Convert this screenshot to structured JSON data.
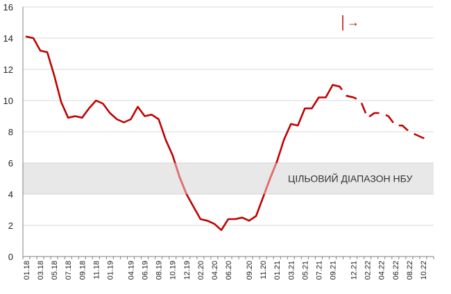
{
  "chart_data": {
    "type": "line",
    "title": "",
    "xlabel": "",
    "ylabel": "",
    "ylim": [
      0,
      16
    ],
    "yticks": [
      0,
      2,
      4,
      6,
      8,
      10,
      12,
      14,
      16
    ],
    "grid": "horizontal",
    "x_tick_labels": [
      "01.18",
      "03.18",
      "05.18",
      "07.18",
      "09.18",
      "11.18",
      "01.19",
      "04.19",
      "06.19",
      "08.19",
      "10.19",
      "12.19",
      "02.20",
      "04.20",
      "06.20",
      "09.20",
      "11.20",
      "01.21",
      "03.21",
      "05.21",
      "07.21",
      "09.21",
      "12.21",
      "02.22",
      "04.22",
      "06.22",
      "08.22",
      "10.22"
    ],
    "target_band": {
      "label": "ЦІЛЬОВИЙ ДІАПАЗОН НБУ",
      "from": 4,
      "to": 6,
      "color": "#e8e8e8"
    },
    "colors": {
      "line": "#c00000",
      "band_line": "#e07070",
      "axis": "#7f7f7f",
      "grid": "#d9d9d9"
    },
    "forecast_marker": {
      "symbol": "→"
    },
    "series_actual": {
      "x": [
        "01.18",
        "02.18",
        "03.18",
        "04.18",
        "05.18",
        "06.18",
        "07.18",
        "08.18",
        "09.18",
        "10.18",
        "11.18",
        "12.18",
        "01.19",
        "02.19",
        "03.19",
        "04.19",
        "05.19",
        "06.19",
        "07.19",
        "08.19",
        "09.19",
        "10.19",
        "11.19",
        "12.19",
        "01.20",
        "02.20",
        "03.20",
        "04.20",
        "05.20",
        "06.20",
        "07.20",
        "08.20",
        "09.20",
        "10.20",
        "11.20",
        "12.20",
        "01.21",
        "02.21",
        "03.21",
        "04.21",
        "05.21",
        "06.21",
        "07.21",
        "08.21",
        "09.21"
      ],
      "values": [
        14.1,
        14.0,
        13.2,
        13.1,
        11.6,
        9.9,
        8.9,
        9.0,
        8.9,
        9.5,
        10.0,
        9.8,
        9.2,
        8.8,
        8.6,
        8.8,
        9.6,
        9.0,
        9.1,
        8.8,
        7.5,
        6.5,
        5.1,
        4.0,
        3.2,
        2.4,
        2.3,
        2.1,
        1.7,
        2.4,
        2.4,
        2.5,
        2.3,
        2.6,
        3.8,
        5.0,
        6.1,
        7.5,
        8.5,
        8.4,
        9.5,
        9.5,
        10.2,
        10.2,
        11.0
      ]
    },
    "series_forecast": {
      "x": [
        "09.21",
        "10.21",
        "11.21",
        "12.21",
        "01.22",
        "02.22",
        "03.22",
        "04.22",
        "05.22",
        "06.22",
        "07.22",
        "08.22",
        "09.22",
        "10.22",
        "11.22"
      ],
      "values": [
        11.0,
        10.9,
        10.3,
        10.2,
        10.0,
        8.9,
        9.2,
        9.2,
        9.0,
        8.4,
        8.4,
        8.0,
        7.8,
        7.6,
        7.5
      ]
    }
  }
}
